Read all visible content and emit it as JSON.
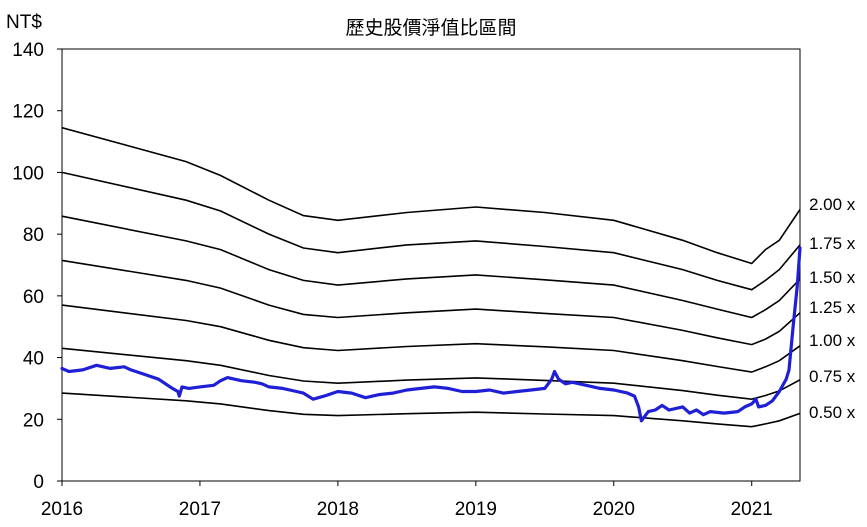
{
  "chart_data": {
    "type": "line",
    "title": "歷史股價淨值比區間",
    "ylabel": "NT$",
    "xlabel": "",
    "xlim": [
      2016.0,
      2021.35
    ],
    "ylim": [
      0,
      140
    ],
    "x_ticks": [
      2016,
      2017,
      2018,
      2019,
      2020,
      2021
    ],
    "x_tick_labels": [
      "2016",
      "2017",
      "2018",
      "2019",
      "2020",
      "2021"
    ],
    "y_ticks": [
      0,
      20,
      40,
      60,
      80,
      100,
      120,
      140
    ],
    "y_tick_labels": [
      "0",
      "20",
      "40",
      "60",
      "80",
      "100",
      "120",
      "140"
    ],
    "grid": false,
    "legend": "none",
    "colors": {
      "price": "#1f1fd6",
      "band": "#000000"
    },
    "bands": [
      {
        "label": "2.00 x",
        "points": [
          [
            2016.0,
            114.5
          ],
          [
            2016.9,
            103.5
          ],
          [
            2017.15,
            99.0
          ],
          [
            2017.5,
            91.0
          ],
          [
            2017.75,
            86.0
          ],
          [
            2018.0,
            84.5
          ],
          [
            2018.5,
            87.0
          ],
          [
            2019.0,
            88.8
          ],
          [
            2019.5,
            87.0
          ],
          [
            2020.0,
            84.5
          ],
          [
            2020.5,
            78.0
          ],
          [
            2020.75,
            74.0
          ],
          [
            2021.0,
            70.5
          ],
          [
            2021.1,
            75.0
          ],
          [
            2021.2,
            78.0
          ],
          [
            2021.35,
            88.0
          ]
        ]
      },
      {
        "label": "1.75 x",
        "points": [
          [
            2016.0,
            100.0
          ],
          [
            2016.9,
            91.0
          ],
          [
            2017.15,
            87.5
          ],
          [
            2017.5,
            80.0
          ],
          [
            2017.75,
            75.5
          ],
          [
            2018.0,
            74.0
          ],
          [
            2018.5,
            76.5
          ],
          [
            2019.0,
            77.8
          ],
          [
            2019.5,
            76.0
          ],
          [
            2020.0,
            74.0
          ],
          [
            2020.5,
            68.5
          ],
          [
            2020.75,
            65.0
          ],
          [
            2021.0,
            62.0
          ],
          [
            2021.1,
            65.0
          ],
          [
            2021.2,
            68.5
          ],
          [
            2021.35,
            76.5
          ]
        ]
      },
      {
        "label": "1.50 x",
        "points": [
          [
            2016.0,
            85.8
          ],
          [
            2016.9,
            77.8
          ],
          [
            2017.15,
            75.0
          ],
          [
            2017.5,
            68.5
          ],
          [
            2017.75,
            65.0
          ],
          [
            2018.0,
            63.5
          ],
          [
            2018.5,
            65.5
          ],
          [
            2019.0,
            66.8
          ],
          [
            2019.5,
            65.2
          ],
          [
            2020.0,
            63.5
          ],
          [
            2020.5,
            58.5
          ],
          [
            2020.75,
            55.7
          ],
          [
            2021.0,
            53.0
          ],
          [
            2021.1,
            55.5
          ],
          [
            2021.2,
            58.5
          ],
          [
            2021.35,
            65.5
          ]
        ]
      },
      {
        "label": "1.25 x",
        "points": [
          [
            2016.0,
            71.5
          ],
          [
            2016.9,
            65.0
          ],
          [
            2017.15,
            62.5
          ],
          [
            2017.5,
            57.0
          ],
          [
            2017.75,
            54.0
          ],
          [
            2018.0,
            53.0
          ],
          [
            2018.5,
            54.5
          ],
          [
            2019.0,
            55.7
          ],
          [
            2019.5,
            54.3
          ],
          [
            2020.0,
            53.0
          ],
          [
            2020.5,
            48.8
          ],
          [
            2020.75,
            46.4
          ],
          [
            2021.0,
            44.2
          ],
          [
            2021.1,
            46.0
          ],
          [
            2021.2,
            48.5
          ],
          [
            2021.35,
            54.5
          ]
        ]
      },
      {
        "label": "1.00 x",
        "points": [
          [
            2016.0,
            57.0
          ],
          [
            2016.9,
            52.0
          ],
          [
            2017.15,
            50.0
          ],
          [
            2017.5,
            45.6
          ],
          [
            2017.75,
            43.2
          ],
          [
            2018.0,
            42.3
          ],
          [
            2018.5,
            43.6
          ],
          [
            2019.0,
            44.5
          ],
          [
            2019.5,
            43.5
          ],
          [
            2020.0,
            42.3
          ],
          [
            2020.5,
            39.0
          ],
          [
            2020.75,
            37.1
          ],
          [
            2021.0,
            35.3
          ],
          [
            2021.1,
            37.0
          ],
          [
            2021.2,
            39.0
          ],
          [
            2021.35,
            43.8
          ]
        ]
      },
      {
        "label": "0.75 x",
        "points": [
          [
            2016.0,
            43.0
          ],
          [
            2016.9,
            39.0
          ],
          [
            2017.15,
            37.5
          ],
          [
            2017.5,
            34.2
          ],
          [
            2017.75,
            32.4
          ],
          [
            2018.0,
            31.7
          ],
          [
            2018.5,
            32.7
          ],
          [
            2019.0,
            33.4
          ],
          [
            2019.5,
            32.6
          ],
          [
            2020.0,
            31.7
          ],
          [
            2020.5,
            29.3
          ],
          [
            2020.75,
            27.8
          ],
          [
            2021.0,
            26.5
          ],
          [
            2021.1,
            27.7
          ],
          [
            2021.2,
            29.2
          ],
          [
            2021.35,
            32.8
          ]
        ]
      },
      {
        "label": "0.50 x",
        "points": [
          [
            2016.0,
            28.5
          ],
          [
            2016.9,
            26.0
          ],
          [
            2017.15,
            25.0
          ],
          [
            2017.5,
            22.8
          ],
          [
            2017.75,
            21.6
          ],
          [
            2018.0,
            21.2
          ],
          [
            2018.5,
            21.8
          ],
          [
            2019.0,
            22.3
          ],
          [
            2019.5,
            21.7
          ],
          [
            2020.0,
            21.2
          ],
          [
            2020.5,
            19.5
          ],
          [
            2020.75,
            18.5
          ],
          [
            2021.0,
            17.6
          ],
          [
            2021.1,
            18.5
          ],
          [
            2021.2,
            19.5
          ],
          [
            2021.35,
            21.9
          ]
        ]
      }
    ],
    "series": [
      {
        "points": [
          [
            2016.0,
            36.5
          ],
          [
            2016.05,
            35.5
          ],
          [
            2016.15,
            36.0
          ],
          [
            2016.25,
            37.5
          ],
          [
            2016.35,
            36.5
          ],
          [
            2016.45,
            37.0
          ],
          [
            2016.5,
            36.0
          ],
          [
            2016.6,
            34.5
          ],
          [
            2016.7,
            33.0
          ],
          [
            2016.8,
            30.0
          ],
          [
            2016.84,
            29.0
          ],
          [
            2016.85,
            27.5
          ],
          [
            2016.87,
            30.5
          ],
          [
            2016.92,
            30.0
          ],
          [
            2017.0,
            30.5
          ],
          [
            2017.1,
            31.0
          ],
          [
            2017.15,
            32.5
          ],
          [
            2017.2,
            33.5
          ],
          [
            2017.3,
            32.5
          ],
          [
            2017.4,
            32.0
          ],
          [
            2017.45,
            31.5
          ],
          [
            2017.5,
            30.5
          ],
          [
            2017.6,
            30.0
          ],
          [
            2017.7,
            29.0
          ],
          [
            2017.75,
            28.5
          ],
          [
            2017.82,
            26.5
          ],
          [
            2017.9,
            27.5
          ],
          [
            2018.0,
            29.0
          ],
          [
            2018.1,
            28.5
          ],
          [
            2018.2,
            27.0
          ],
          [
            2018.3,
            28.0
          ],
          [
            2018.4,
            28.5
          ],
          [
            2018.5,
            29.5
          ],
          [
            2018.6,
            30.0
          ],
          [
            2018.7,
            30.5
          ],
          [
            2018.8,
            30.0
          ],
          [
            2018.9,
            29.0
          ],
          [
            2019.0,
            29.0
          ],
          [
            2019.1,
            29.5
          ],
          [
            2019.2,
            28.5
          ],
          [
            2019.3,
            29.0
          ],
          [
            2019.4,
            29.5
          ],
          [
            2019.5,
            30.0
          ],
          [
            2019.55,
            33.0
          ],
          [
            2019.57,
            35.5
          ],
          [
            2019.6,
            33.0
          ],
          [
            2019.65,
            31.5
          ],
          [
            2019.7,
            32.0
          ],
          [
            2019.8,
            31.0
          ],
          [
            2019.9,
            30.0
          ],
          [
            2020.0,
            29.5
          ],
          [
            2020.1,
            28.5
          ],
          [
            2020.15,
            27.5
          ],
          [
            2020.18,
            24.0
          ],
          [
            2020.2,
            19.5
          ],
          [
            2020.25,
            22.5
          ],
          [
            2020.3,
            23.0
          ],
          [
            2020.35,
            24.5
          ],
          [
            2020.4,
            23.0
          ],
          [
            2020.5,
            24.0
          ],
          [
            2020.55,
            22.0
          ],
          [
            2020.6,
            23.0
          ],
          [
            2020.65,
            21.5
          ],
          [
            2020.7,
            22.5
          ],
          [
            2020.8,
            22.0
          ],
          [
            2020.9,
            22.5
          ],
          [
            2020.95,
            24.0
          ],
          [
            2021.0,
            25.0
          ],
          [
            2021.03,
            26.5
          ],
          [
            2021.05,
            24.0
          ],
          [
            2021.1,
            24.5
          ],
          [
            2021.15,
            26.0
          ],
          [
            2021.2,
            29.0
          ],
          [
            2021.25,
            33.0
          ],
          [
            2021.27,
            36.0
          ],
          [
            2021.3,
            50.0
          ],
          [
            2021.33,
            63.0
          ],
          [
            2021.35,
            75.5
          ]
        ]
      }
    ]
  }
}
